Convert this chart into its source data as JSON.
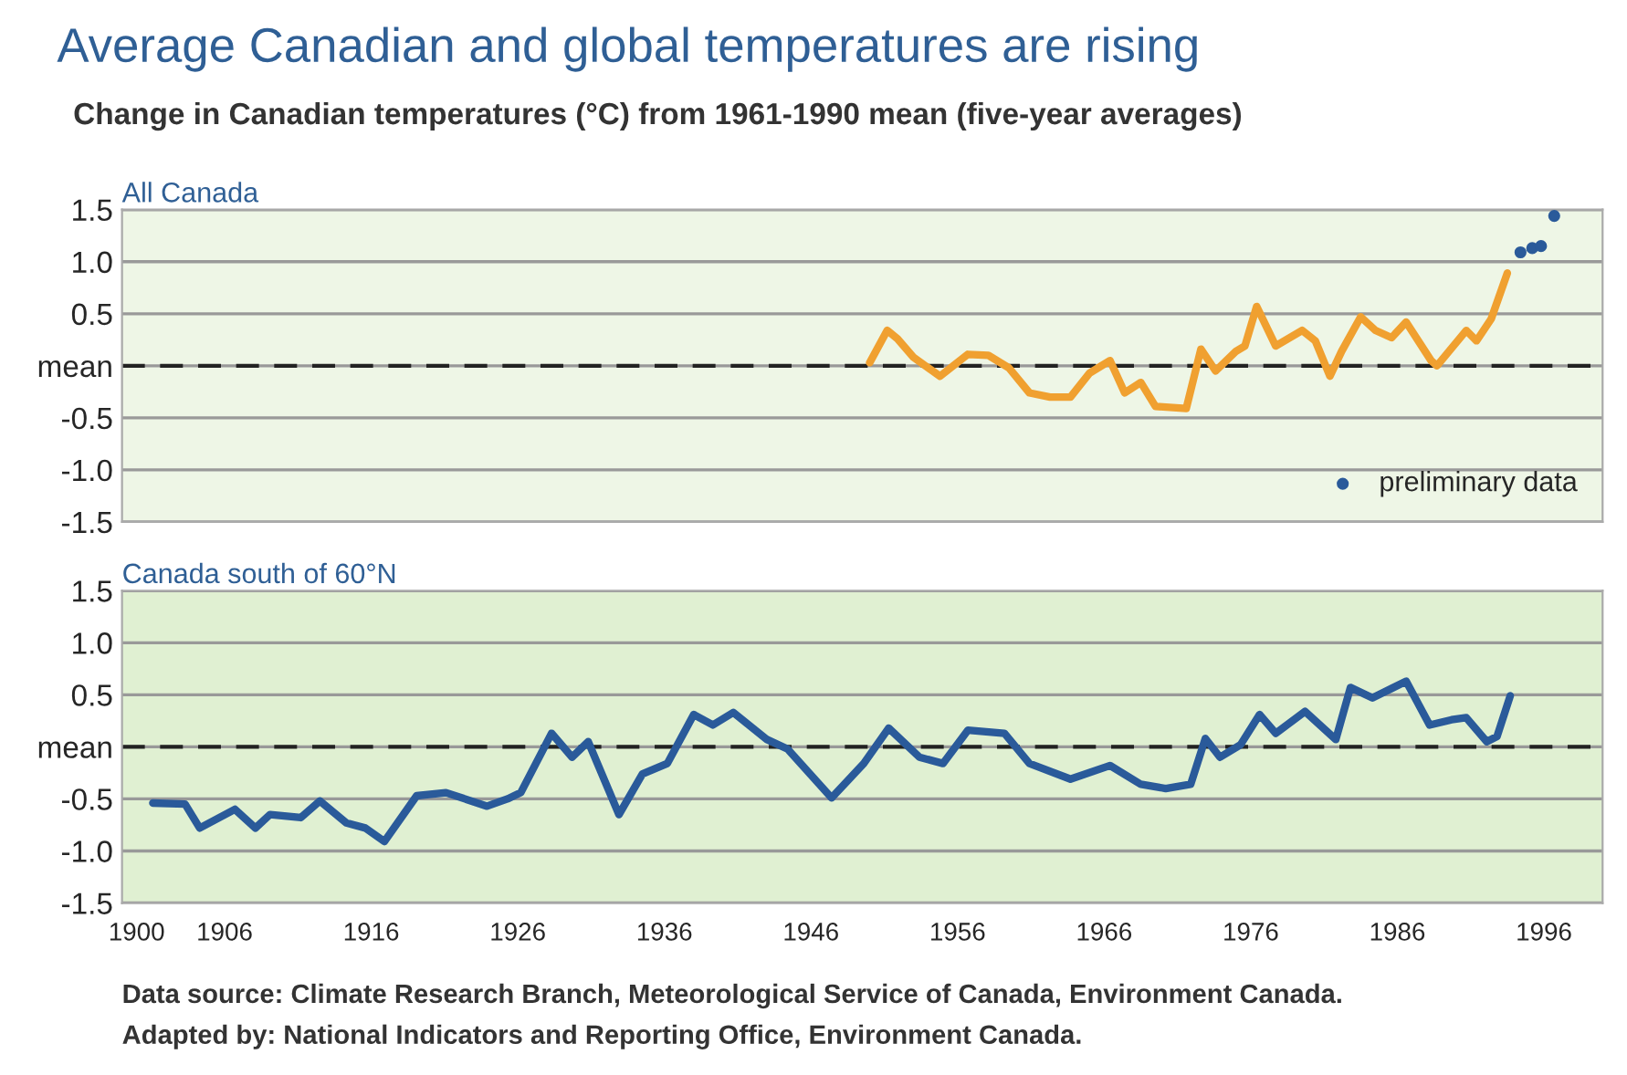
{
  "chart_data": [
    {
      "type": "line",
      "title": "Average Canadian and global temperatures are rising",
      "subtitle": "Change in Canadian temperatures (°C) from 1961-1990 mean (five-year averages)",
      "xlabel": "All Canada",
      "series": [
        {
          "color": "#f0a030",
          "x": [
            1950.0,
            1951.2,
            1951.9,
            1953.0,
            1954.8,
            1956.7,
            1958.1,
            1959.5,
            1960.9,
            1962.3,
            1963.7,
            1965.0,
            1966.4,
            1967.4,
            1968.5,
            1969.5,
            1971.6,
            1972.6,
            1973.6,
            1975.0,
            1975.6,
            1976.4,
            1977.7,
            1979.5,
            1980.4,
            1981.4,
            1982.2,
            1983.5,
            1984.5,
            1985.6,
            1986.6,
            1988.3,
            1988.7,
            1990.7,
            1991.4,
            1992.4,
            1993.5
          ],
          "values": [
            0.03,
            0.34,
            0.26,
            0.08,
            -0.1,
            0.11,
            0.1,
            -0.02,
            -0.26,
            -0.3,
            -0.3,
            -0.07,
            0.05,
            -0.26,
            -0.16,
            -0.39,
            -0.41,
            0.16,
            -0.05,
            0.14,
            0.19,
            0.57,
            0.19,
            0.34,
            0.24,
            -0.1,
            0.14,
            0.47,
            0.34,
            0.27,
            0.42,
            0.05,
            0.0,
            0.34,
            0.24,
            0.45,
            0.89
          ]
        },
        {
          "type": "scatter",
          "name": "preliminary data",
          "marker": "circle",
          "color": "#2a5a9a",
          "x": [
            1994.4,
            1995.2,
            1995.8,
            1996.7
          ],
          "values": [
            1.09,
            1.13,
            1.15,
            1.44
          ]
        }
      ],
      "xlim": [
        1899,
        2000
      ],
      "ylim": [
        -1.5,
        1.5
      ],
      "yticks": [
        {
          "value": -1.5,
          "label": "-1.5"
        },
        {
          "value": -1.0,
          "label": "-1.0"
        },
        {
          "value": -0.5,
          "label": "-0.5"
        },
        {
          "value": 0,
          "label": "mean"
        },
        {
          "value": 0.5,
          "label": "0.5"
        },
        {
          "value": 1.0,
          "label": "1.0"
        },
        {
          "value": 1.5,
          "label": "1.5"
        }
      ],
      "tick_labels": "y",
      "grid": "y",
      "legend": "bottom right",
      "line_style": "solid",
      "ref_lines": [
        {
          "axis": "y",
          "value": 0,
          "color": "#222222",
          "line_style": "dashed"
        }
      ]
    },
    {
      "type": "line",
      "xlabel": "Canada south of 60°N",
      "series": [
        {
          "color": "#2a5a9a",
          "x": [
            1901.1,
            1903.3,
            1904.3,
            1906.7,
            1908.1,
            1909.1,
            1911.2,
            1912.5,
            1914.3,
            1915.6,
            1916.9,
            1919.1,
            1921.1,
            1923.9,
            1925.3,
            1926.2,
            1928.3,
            1929.7,
            1930.8,
            1932.9,
            1934.5,
            1936.2,
            1938.0,
            1939.3,
            1940.7,
            1943.0,
            1944.4,
            1947.4,
            1949.6,
            1951.3,
            1953.4,
            1955.0,
            1956.7,
            1959.2,
            1960.9,
            1963.7,
            1966.4,
            1968.5,
            1970.2,
            1971.9,
            1972.9,
            1973.9,
            1975.3,
            1976.6,
            1977.7,
            1979.7,
            1981.8,
            1982.8,
            1984.3,
            1986.6,
            1988.2,
            1989.7,
            1990.7,
            1992.1,
            1992.8,
            1993.7
          ],
          "values": [
            -0.54,
            -0.55,
            -0.78,
            -0.6,
            -0.78,
            -0.65,
            -0.68,
            -0.52,
            -0.73,
            -0.78,
            -0.91,
            -0.47,
            -0.44,
            -0.57,
            -0.5,
            -0.44,
            0.13,
            -0.1,
            0.05,
            -0.65,
            -0.26,
            -0.16,
            0.31,
            0.21,
            0.33,
            0.07,
            -0.02,
            -0.49,
            -0.16,
            0.18,
            -0.1,
            -0.16,
            0.16,
            0.13,
            -0.16,
            -0.31,
            -0.18,
            -0.36,
            -0.4,
            -0.36,
            0.08,
            -0.1,
            0.02,
            0.31,
            0.13,
            0.34,
            0.07,
            0.57,
            0.47,
            0.63,
            0.21,
            0.26,
            0.28,
            0.05,
            0.1,
            0.49
          ]
        }
      ],
      "xlim": [
        1899,
        2000
      ],
      "xticks": [
        1900,
        1906,
        1916,
        1926,
        1936,
        1946,
        1956,
        1966,
        1976,
        1986,
        1996
      ],
      "ylim": [
        -1.5,
        1.5
      ],
      "yticks": [
        {
          "value": -1.5,
          "label": "-1.5"
        },
        {
          "value": -1.0,
          "label": "-1.0"
        },
        {
          "value": -0.5,
          "label": "-0.5"
        },
        {
          "value": 0,
          "label": "mean"
        },
        {
          "value": 0.5,
          "label": "0.5"
        },
        {
          "value": 1.0,
          "label": "1.0"
        },
        {
          "value": 1.5,
          "label": "1.5"
        }
      ],
      "grid": "y",
      "marker": "none",
      "line_style": "solid",
      "ref_lines": [
        {
          "axis": "y",
          "value": 0,
          "color": "#222222",
          "line_style": "dashed"
        }
      ],
      "annotations": [
        "Data source: Climate Research Branch, Meteorological Service of Canada, Environment Canada.",
        "Adapted by: National Indicators and Reporting Office, Environment Canada."
      ]
    }
  ]
}
